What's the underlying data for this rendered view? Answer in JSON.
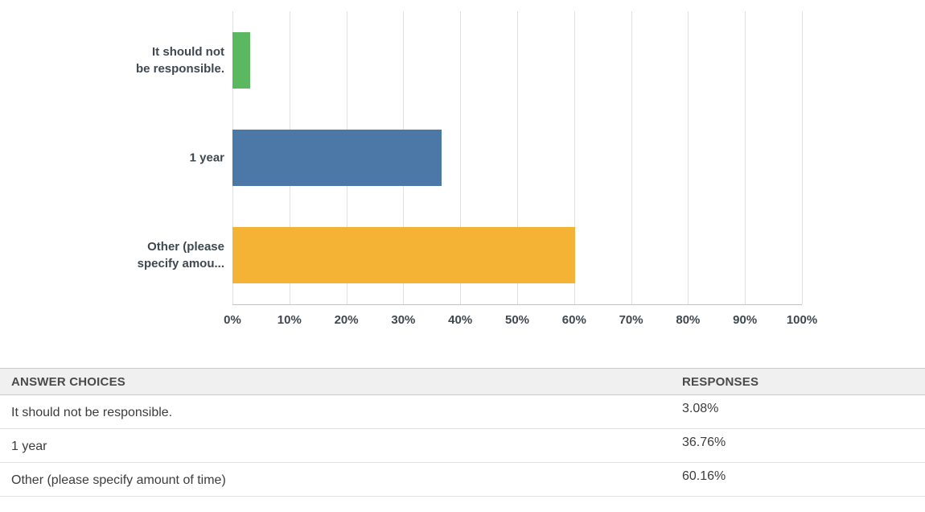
{
  "chart_data": {
    "type": "bar",
    "orientation": "horizontal",
    "title": "",
    "categories": [
      "It should not be responsible.",
      "1 year",
      "Other (please specify amount of time)"
    ],
    "display_labels": [
      "It should not\nbe responsible.",
      "1 year",
      "Other (please\nspecify amou..."
    ],
    "values": [
      3.08,
      36.76,
      60.16
    ],
    "colors": [
      "#5CB860",
      "#4C78A8",
      "#F5B335"
    ],
    "xlim": [
      0,
      100
    ],
    "x_ticks": [
      "0%",
      "10%",
      "20%",
      "30%",
      "40%",
      "50%",
      "60%",
      "70%",
      "80%",
      "90%",
      "100%"
    ],
    "grid": true,
    "legend_position": "none",
    "xlabel": "",
    "ylabel": ""
  },
  "table": {
    "headers": [
      "ANSWER CHOICES",
      "RESPONSES"
    ],
    "rows": [
      {
        "choice": "It should not be responsible.",
        "response": "3.08%"
      },
      {
        "choice": "1 year",
        "response": "36.76%"
      },
      {
        "choice": "Other (please specify amount of time)",
        "response": "60.16%"
      }
    ]
  }
}
